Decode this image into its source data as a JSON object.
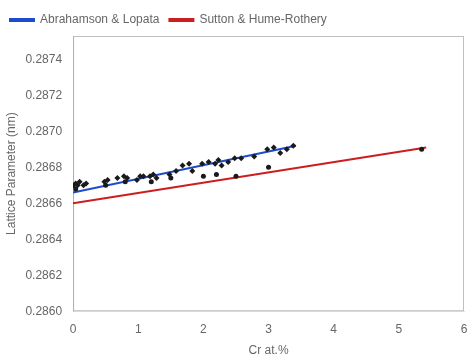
{
  "chart_data": {
    "type": "scatter",
    "xlabel": "Cr at.%",
    "ylabel": "Lattice Parameter (nm)",
    "xlim": [
      0,
      6
    ],
    "ylim": [
      0.286,
      0.28753
    ],
    "xticks": [
      0,
      1,
      2,
      3,
      4,
      5,
      6
    ],
    "yticks": [
      {
        "value": 0.286,
        "label": "0.2860"
      },
      0.2862,
      0.2864,
      0.2866,
      0.2868,
      {
        "value": 0.287,
        "label": "0.2870"
      },
      0.2872,
      0.2874
    ],
    "grid": false,
    "legend": "upper left",
    "series": [
      {
        "name": "Abrahamson & Lopata",
        "type": "line",
        "color": "#1E4BCC",
        "x": [
          0.0,
          3.42
        ],
        "values": [
          0.28666,
          0.28692
        ]
      },
      {
        "name": "Sutton & Hume-Rothery",
        "type": "line",
        "color": "#CC1E1E",
        "x": [
          0.0,
          5.42
        ],
        "values": [
          0.2866,
          0.28691
        ]
      },
      {
        "type": "scatter",
        "marker": "diamond",
        "color": "#1a1a1a",
        "x": [
          0.0,
          0.04,
          0.07,
          0.1,
          0.16,
          0.2,
          0.48,
          0.53,
          0.68,
          0.78,
          0.83,
          0.98,
          1.03,
          1.08,
          1.18,
          1.23,
          1.28,
          1.48,
          1.58,
          1.68,
          1.78,
          1.83,
          1.98,
          2.08,
          2.18,
          2.23,
          2.28,
          2.38,
          2.48,
          2.58,
          2.78,
          2.98,
          3.08,
          3.18,
          3.28,
          3.38
        ],
        "values": [
          0.2867,
          0.28671,
          0.2867,
          0.28672,
          0.2867,
          0.28671,
          0.28672,
          0.28673,
          0.28674,
          0.28675,
          0.28674,
          0.28673,
          0.28675,
          0.28675,
          0.28675,
          0.28676,
          0.28674,
          0.28676,
          0.28678,
          0.28681,
          0.28682,
          0.28678,
          0.28682,
          0.28683,
          0.28682,
          0.28684,
          0.28681,
          0.28683,
          0.28685,
          0.28685,
          0.28686,
          0.2869,
          0.28691,
          0.28688,
          0.2869,
          0.28692
        ]
      },
      {
        "type": "scatter",
        "marker": "circle",
        "color": "#1a1a1a",
        "x": [
          0.0,
          0.04,
          0.5,
          0.8,
          1.2,
          1.5,
          2.0,
          2.2,
          2.5,
          3.0,
          5.35
        ],
        "values": [
          0.2867,
          0.28668,
          0.2867,
          0.28672,
          0.28672,
          0.28674,
          0.28675,
          0.28676,
          0.28675,
          0.2868,
          0.2869
        ]
      }
    ]
  }
}
